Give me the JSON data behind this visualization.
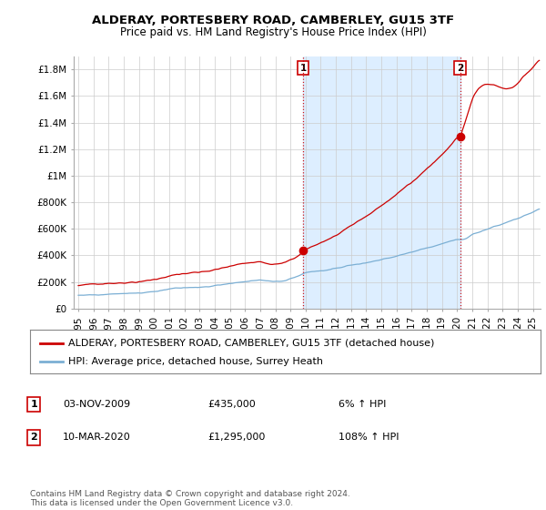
{
  "title": "ALDERAY, PORTESBERY ROAD, CAMBERLEY, GU15 3TF",
  "subtitle": "Price paid vs. HM Land Registry's House Price Index (HPI)",
  "ylabel_ticks": [
    "£0",
    "£200K",
    "£400K",
    "£600K",
    "£800K",
    "£1M",
    "£1.2M",
    "£1.4M",
    "£1.6M",
    "£1.8M"
  ],
  "ylabel_values": [
    0,
    200000,
    400000,
    600000,
    800000,
    1000000,
    1200000,
    1400000,
    1600000,
    1800000
  ],
  "ylim": [
    0,
    1900000
  ],
  "xlim_start": 1994.7,
  "xlim_end": 2025.5,
  "sale1_x": 2009.84,
  "sale1_y": 435000,
  "sale2_x": 2020.19,
  "sale2_y": 1295000,
  "line_color_red": "#cc0000",
  "line_color_blue": "#7bafd4",
  "shade_color": "#ddeeff",
  "annotation_box_color": "#cc0000",
  "legend1": "ALDERAY, PORTESBERY ROAD, CAMBERLEY, GU15 3TF (detached house)",
  "legend2": "HPI: Average price, detached house, Surrey Heath",
  "table_row1": [
    "1",
    "03-NOV-2009",
    "£435,000",
    "6% ↑ HPI"
  ],
  "table_row2": [
    "2",
    "10-MAR-2020",
    "£1,295,000",
    "108% ↑ HPI"
  ],
  "footnote": "Contains HM Land Registry data © Crown copyright and database right 2024.\nThis data is licensed under the Open Government Licence v3.0.",
  "bg_color": "#ffffff",
  "grid_color": "#cccccc",
  "title_fontsize": 9.5,
  "subtitle_fontsize": 8.5,
  "tick_fontsize": 7.5,
  "legend_fontsize": 8,
  "footnote_fontsize": 6.5
}
